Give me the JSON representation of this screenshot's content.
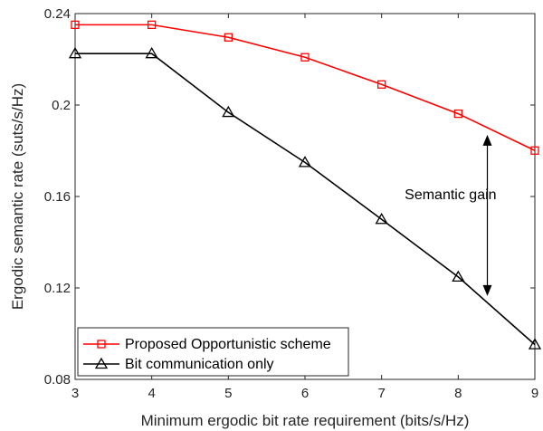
{
  "chart_data": {
    "type": "line",
    "xlabel": "Minimum ergodic bit rate requirement (bits/s/Hz)",
    "ylabel": "Ergodic semantic rate (suts/s/Hz)",
    "xlim": [
      3,
      9
    ],
    "ylim": [
      0.08,
      0.24
    ],
    "xticks": [
      3,
      4,
      5,
      6,
      7,
      8,
      9
    ],
    "yticks": [
      0.08,
      0.12,
      0.16,
      0.2,
      0.24
    ],
    "ytick_labels": [
      "0.08",
      "0.12",
      "0.16",
      "0.2",
      "0.24"
    ],
    "grid": false,
    "legend_position": "bottom-left",
    "x": [
      3,
      4,
      5,
      6,
      7,
      8,
      9
    ],
    "series": [
      {
        "name": "Proposed Opportunistic scheme",
        "values": [
          0.2351,
          0.2351,
          0.2296,
          0.2209,
          0.209,
          0.1962,
          0.1801
        ],
        "color": "#ff0000",
        "marker": "square"
      },
      {
        "name": "Bit communication only",
        "values": [
          0.2225,
          0.2225,
          0.1968,
          0.1749,
          0.15,
          0.1248,
          0.0952
        ],
        "color": "#000000",
        "marker": "triangle"
      }
    ],
    "annotations": [
      {
        "text": "Semantic gain",
        "x": 7.9,
        "y": 0.1611,
        "arrow_x": 8.38,
        "arrow_from": 0.187,
        "arrow_to": 0.1165
      }
    ]
  }
}
